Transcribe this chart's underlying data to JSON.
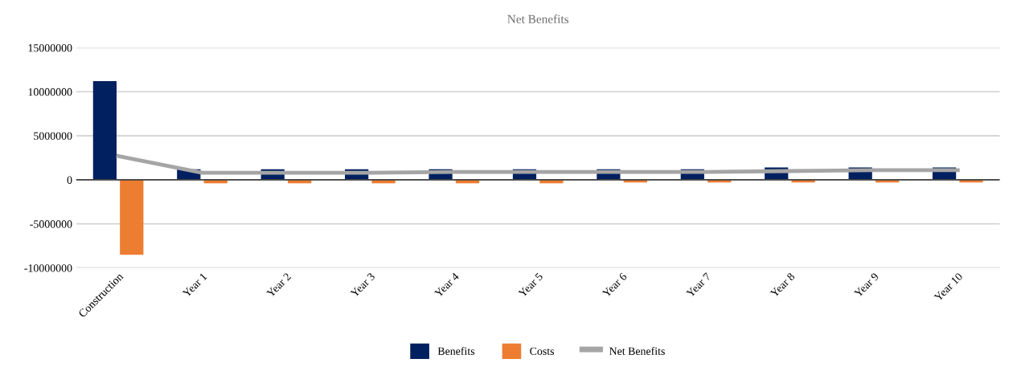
{
  "chart_data": {
    "type": "bar",
    "title": "Net Benefits",
    "categories": [
      "Construction",
      "Year 1",
      "Year 2",
      "Year 3",
      "Year 4",
      "Year 5",
      "Year 6",
      "Year 7",
      "Year 8",
      "Year 9",
      "Year 10"
    ],
    "series": [
      {
        "name": "Benefits",
        "color": "#002060",
        "values": [
          11200000,
          1200000,
          1200000,
          1200000,
          1200000,
          1200000,
          1200000,
          1200000,
          1400000,
          1400000,
          1400000
        ]
      },
      {
        "name": "Costs",
        "color": "#ed7d31",
        "values": [
          -8500000,
          -400000,
          -400000,
          -400000,
          -400000,
          -400000,
          -300000,
          -300000,
          -300000,
          -300000,
          -300000
        ]
      },
      {
        "name": "Net Benefits",
        "type": "line",
        "color": "#a5a5a5",
        "values": [
          2700000,
          800000,
          800000,
          800000,
          900000,
          900000,
          900000,
          900000,
          1000000,
          1100000,
          1100000
        ]
      }
    ],
    "ylim": [
      -10000000,
      15000000
    ],
    "yticks": [
      -10000000,
      -5000000,
      0,
      5000000,
      10000000,
      15000000
    ],
    "grid": "y",
    "legend": "bottom",
    "marker": "none"
  }
}
